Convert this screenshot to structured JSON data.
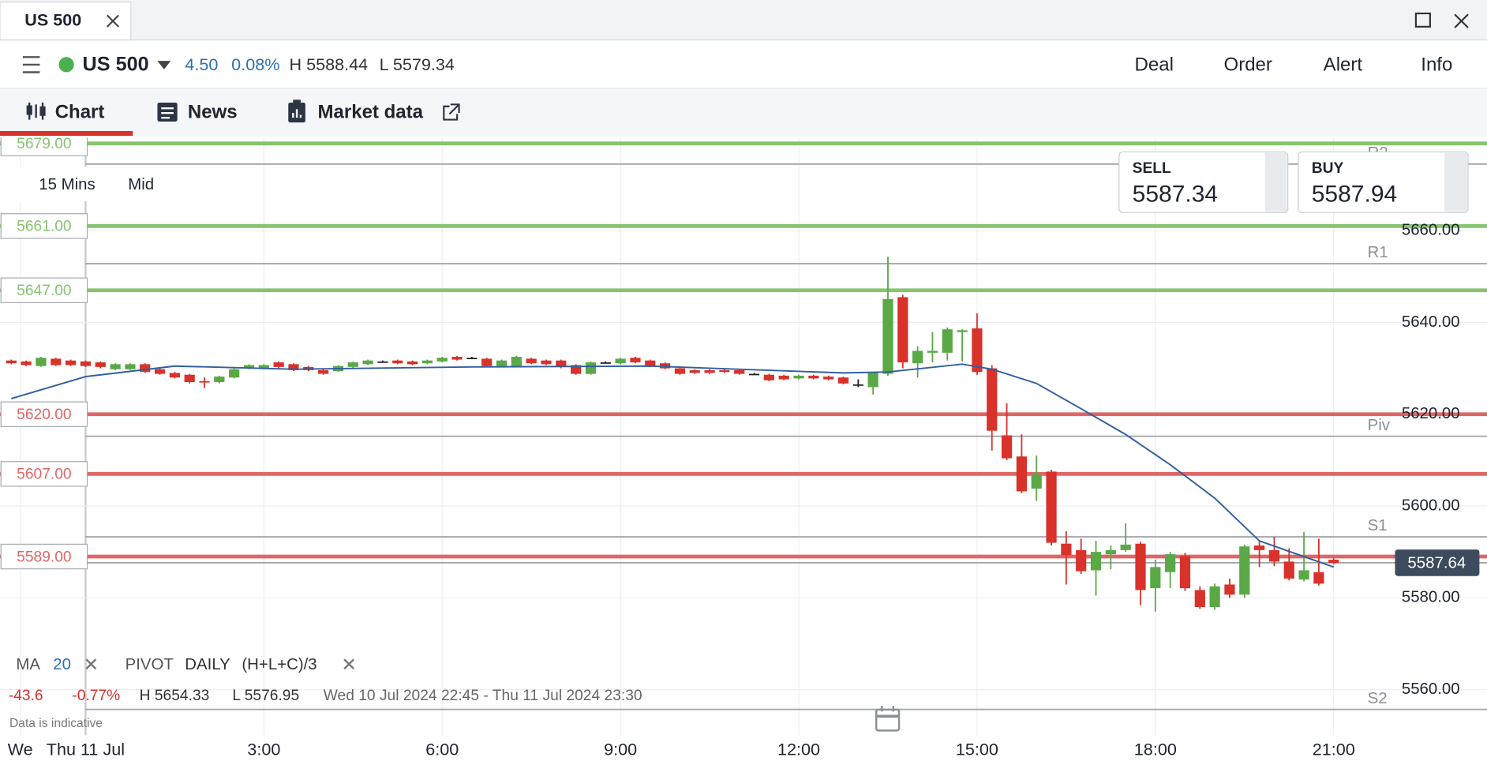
{
  "window": {
    "tab_title": "US 500"
  },
  "header": {
    "instrument": "US 500",
    "change": "4.50",
    "change_pct": "0.08%",
    "high": "H 5588.44",
    "low": "L 5579.34",
    "actions": [
      "Deal",
      "Order",
      "Alert",
      "Info"
    ]
  },
  "tabs": [
    "Chart",
    "News",
    "Market data"
  ],
  "controls": {
    "interval": "15 Mins",
    "price_type": "Mid"
  },
  "quotes": {
    "sell_label": "SELL",
    "sell": "5587.34",
    "buy_label": "BUY",
    "buy": "5587.94"
  },
  "indicators": {
    "ma_label": "MA",
    "ma_period": "20",
    "pivot_label": "PIVOT",
    "pivot_period": "DAILY",
    "pivot_formula": "(H+L+C)/3"
  },
  "stats": {
    "change": "-43.6",
    "change_pct": "-0.77%",
    "high": "H 5654.33",
    "low": "L 5576.95",
    "range": "Wed 10 Jul 2024 22:45 - Thu 11 Jul 2024 23:30",
    "note": "Data is indicative"
  },
  "chart_data": {
    "type": "candlestick",
    "up_color": "#5aa846",
    "down_color": "#d8322b",
    "flat_color": "#222222",
    "xlim": [
      -1.44,
      23.58
    ],
    "ylim": [
      5548,
      5680
    ],
    "grid": true,
    "xticks": [
      {
        "value": -1.1,
        "label": "We"
      },
      {
        "value": 0,
        "label": "Thu 11 Jul"
      },
      {
        "value": 3,
        "label": "3:00"
      },
      {
        "value": 6,
        "label": "6:00"
      },
      {
        "value": 9,
        "label": "9:00"
      },
      {
        "value": 12,
        "label": "12:00"
      },
      {
        "value": 15,
        "label": "15:00"
      },
      {
        "value": 18,
        "label": "18:00"
      },
      {
        "value": 21,
        "label": "21:00"
      }
    ],
    "yticks": [
      {
        "value": 5560,
        "label": "5560.00"
      },
      {
        "value": 5580,
        "label": "5580.00"
      },
      {
        "value": 5600,
        "label": "5600.00"
      },
      {
        "value": 5620,
        "label": "5620.00"
      },
      {
        "value": 5640,
        "label": "5640.00"
      },
      {
        "value": 5660,
        "label": "5660.00"
      }
    ],
    "x": [
      -1.25,
      -1,
      -0.75,
      -0.5,
      -0.25,
      0,
      0.25,
      0.5,
      0.75,
      1,
      1.25,
      1.5,
      1.75,
      2,
      2.25,
      2.5,
      2.75,
      3,
      3.25,
      3.5,
      3.75,
      4,
      4.25,
      4.5,
      4.75,
      5,
      5.25,
      5.5,
      5.75,
      6,
      6.25,
      6.5,
      6.75,
      7,
      7.25,
      7.5,
      7.75,
      8,
      8.25,
      8.5,
      8.75,
      9,
      9.25,
      9.5,
      9.75,
      10,
      10.25,
      10.5,
      10.75,
      11,
      11.25,
      11.5,
      11.75,
      12,
      12.25,
      12.5,
      12.75,
      13,
      13.25,
      13.5,
      13.75,
      14,
      14.25,
      14.5,
      14.75,
      15,
      15.25,
      15.5,
      15.75,
      16,
      16.25,
      16.5,
      16.75,
      17,
      17.25,
      17.5,
      17.75,
      18,
      18.25,
      18.5,
      18.75,
      19,
      19.25,
      19.5,
      19.75,
      20,
      20.25,
      20.5,
      20.75,
      21
    ],
    "open": [
      5631.7,
      5631.5,
      5630.5,
      5632.1,
      5631.7,
      5631.5,
      5631.3,
      5629.8,
      5629.8,
      5630.9,
      5629.8,
      5629.0,
      5628.6,
      5627.2,
      5627.0,
      5628.0,
      5630.0,
      5630.0,
      5631.3,
      5630.9,
      5630.3,
      5629.6,
      5629.4,
      5630.3,
      5630.9,
      5631.5,
      5631.7,
      5631.5,
      5631.1,
      5631.5,
      5632.5,
      5632.3,
      5632.1,
      5630.5,
      5630.5,
      5632.1,
      5631.7,
      5631.7,
      5630.7,
      5628.8,
      5631.3,
      5631.1,
      5632.3,
      5631.7,
      5631.1,
      5630.0,
      5629.6,
      5629.6,
      5629.6,
      5629.6,
      5628.8,
      5628.6,
      5628.4,
      5627.8,
      5628.4,
      5628.2,
      5628.0,
      5626.5,
      5625.9,
      5628.8,
      5645.5,
      5631.1,
      5633.4,
      5633.4,
      5637.9,
      5638.7,
      5630.0,
      5615.4,
      5610.8,
      5603.8,
      5607.5,
      5591.8,
      5590.4,
      5586.0,
      5589.5,
      5590.4,
      5591.8,
      5582.1,
      5585.6,
      5589.1,
      5581.7,
      5578.0,
      5582.9,
      5580.7,
      5591.4,
      5590.4,
      5587.9,
      5584.0,
      5585.6,
      5588.3
    ],
    "high": [
      5631.9,
      5631.7,
      5632.5,
      5632.3,
      5631.9,
      5631.7,
      5631.5,
      5631.1,
      5631.1,
      5631.1,
      5630.0,
      5629.2,
      5628.8,
      5628.0,
      5628.4,
      5630.0,
      5630.9,
      5630.9,
      5631.5,
      5631.1,
      5630.5,
      5629.8,
      5630.7,
      5631.5,
      5631.9,
      5631.7,
      5631.9,
      5631.7,
      5631.9,
      5632.5,
      5632.7,
      5632.5,
      5632.3,
      5631.9,
      5632.7,
      5632.3,
      5631.9,
      5631.9,
      5630.9,
      5631.5,
      5631.5,
      5632.3,
      5632.5,
      5631.9,
      5631.3,
      5630.3,
      5629.8,
      5629.8,
      5629.8,
      5629.8,
      5629.0,
      5628.8,
      5628.6,
      5628.6,
      5628.6,
      5628.4,
      5628.2,
      5627.6,
      5629.2,
      5654.3,
      5646.0,
      5634.8,
      5637.9,
      5638.9,
      5638.5,
      5642.0,
      5630.7,
      5622.4,
      5615.6,
      5611.0,
      5607.9,
      5594.5,
      5592.9,
      5592.4,
      5591.4,
      5596.2,
      5592.2,
      5588.3,
      5590.0,
      5589.8,
      5582.5,
      5583.1,
      5584.2,
      5591.6,
      5592.2,
      5593.3,
      5590.8,
      5594.3,
      5592.9,
      5588.7
    ],
    "low": [
      5630.9,
      5630.5,
      5630.3,
      5630.5,
      5630.5,
      5630.3,
      5630.0,
      5629.6,
      5629.6,
      5629.0,
      5628.6,
      5627.8,
      5626.7,
      5625.7,
      5626.7,
      5627.8,
      5629.8,
      5629.8,
      5630.0,
      5629.4,
      5629.4,
      5628.6,
      5629.2,
      5630.0,
      5630.7,
      5631.3,
      5630.9,
      5630.7,
      5630.9,
      5631.3,
      5631.7,
      5632.1,
      5630.3,
      5630.3,
      5630.3,
      5630.9,
      5630.7,
      5630.0,
      5628.6,
      5628.6,
      5631.1,
      5630.9,
      5631.1,
      5630.3,
      5629.8,
      5628.6,
      5628.8,
      5628.8,
      5629.0,
      5628.6,
      5628.6,
      5627.2,
      5627.4,
      5627.6,
      5627.6,
      5627.4,
      5626.5,
      5625.9,
      5624.3,
      5628.4,
      5630.0,
      5628.0,
      5631.3,
      5631.7,
      5631.5,
      5628.6,
      5612.1,
      5610.0,
      5602.8,
      5601.1,
      5591.4,
      5582.9,
      5585.2,
      5580.5,
      5586.2,
      5590.0,
      5578.4,
      5577.0,
      5582.1,
      5581.5,
      5577.6,
      5577.4,
      5580.0,
      5580.0,
      5586.7,
      5586.9,
      5583.8,
      5583.6,
      5582.7,
      5587.3
    ],
    "close": [
      5631.1,
      5630.7,
      5632.3,
      5630.7,
      5630.7,
      5630.5,
      5630.3,
      5630.9,
      5630.9,
      5629.2,
      5628.8,
      5628.0,
      5627.0,
      5627.0,
      5628.2,
      5629.8,
      5630.7,
      5630.7,
      5630.3,
      5629.6,
      5629.6,
      5628.8,
      5630.5,
      5631.3,
      5631.7,
      5631.5,
      5631.1,
      5630.9,
      5631.7,
      5632.3,
      5631.9,
      5632.3,
      5630.5,
      5631.7,
      5632.5,
      5631.1,
      5630.9,
      5630.3,
      5628.8,
      5631.3,
      5631.3,
      5632.1,
      5631.3,
      5630.5,
      5630.0,
      5628.8,
      5629.0,
      5629.0,
      5629.2,
      5628.8,
      5628.8,
      5627.4,
      5627.6,
      5628.4,
      5627.8,
      5627.6,
      5626.7,
      5626.5,
      5629.0,
      5645.1,
      5631.3,
      5633.8,
      5633.8,
      5638.5,
      5638.3,
      5629.2,
      5616.4,
      5610.4,
      5603.2,
      5606.9,
      5592.0,
      5589.3,
      5585.8,
      5590.0,
      5590.4,
      5591.6,
      5581.7,
      5586.7,
      5589.5,
      5582.1,
      5578.0,
      5582.5,
      5580.7,
      5591.2,
      5590.4,
      5587.9,
      5584.2,
      5586.0,
      5583.1,
      5587.6
    ],
    "ma": {
      "color": "#2f5f9e",
      "x": [
        -1.25,
        0,
        1.5,
        3.5,
        6.5,
        9.5,
        12.75,
        13.5,
        14.75,
        15.25,
        16,
        16.75,
        17.5,
        18.25,
        19,
        19.75,
        21
      ],
      "values": [
        5623.4,
        5628.2,
        5630.5,
        5629.8,
        5630.3,
        5630.5,
        5629.0,
        5629.2,
        5630.9,
        5629.8,
        5626.7,
        5621.2,
        5615.6,
        5609.0,
        5601.7,
        5592.4,
        5586.7
      ]
    },
    "levels": [
      {
        "value": 5679,
        "label": "5679.00",
        "color": "#86c46f"
      },
      {
        "value": 5661,
        "label": "5661.00",
        "color": "#86c46f"
      },
      {
        "value": 5647,
        "label": "5647.00",
        "color": "#86c46f"
      },
      {
        "value": 5620,
        "label": "5620.00",
        "color": "#e06666"
      },
      {
        "value": 5607,
        "label": "5607.00",
        "color": "#e06666"
      },
      {
        "value": 5589,
        "label": "5589.00",
        "color": "#e06666"
      }
    ],
    "pivots": [
      {
        "name": "R2",
        "value": 5674.5
      },
      {
        "name": "R1",
        "value": 5652.8
      },
      {
        "name": "Piv",
        "value": 5615.2
      },
      {
        "name": "S1",
        "value": 5593.3
      },
      {
        "name": "S2",
        "value": 5555.7
      }
    ],
    "last_price": 5587.64
  }
}
